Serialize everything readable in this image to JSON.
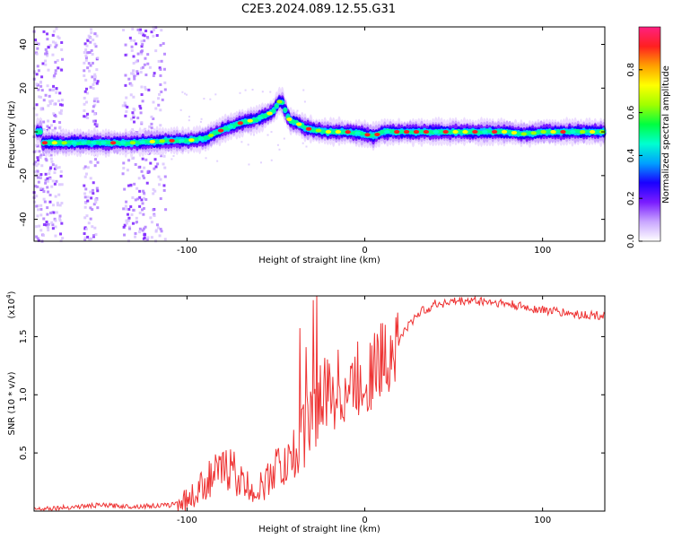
{
  "chart_data": [
    {
      "type": "heatmap",
      "title": "C2E3.2024.089.12.55.G31",
      "xlabel": "Height of straight line (km)",
      "ylabel": "Frequency (Hz)",
      "xlim": [
        -186,
        135
      ],
      "ylim": [
        -50,
        48
      ],
      "x_ticks": [
        -100,
        0,
        100
      ],
      "x_tick_labels": [
        "-100",
        "0",
        "100"
      ],
      "y_ticks": [
        -40,
        -20,
        0,
        20,
        40
      ],
      "y_tick_labels": [
        "-40",
        "-20",
        "0",
        "20",
        "40"
      ],
      "colorbar": {
        "label": "Normalized spectral amplitude",
        "range": [
          0,
          1
        ],
        "ticks": [
          0.0,
          0.2,
          0.4,
          0.6,
          0.8
        ],
        "tick_labels": [
          "0.0",
          "0.2",
          "0.4",
          "0.6",
          "0.8"
        ],
        "colors": [
          "#ffffff",
          "#c9a6ff",
          "#7a1cff",
          "#1a00ff",
          "#00a0ff",
          "#00ffd0",
          "#00ff40",
          "#a0ff00",
          "#ffff00",
          "#ffa000",
          "#ff2020",
          "#ff2080"
        ]
      },
      "ridge": {
        "name": "dominant frequency",
        "x": [
          -182,
          -170,
          -150,
          -130,
          -110,
          -100,
          -90,
          -80,
          -70,
          -60,
          -52,
          -47,
          -44,
          -42,
          -38,
          -34,
          -30,
          -20,
          -10,
          0,
          5,
          10,
          20,
          40,
          60,
          80,
          90,
          100,
          110,
          120,
          135
        ],
        "y": [
          -5,
          -5,
          -5,
          -5,
          -4,
          -4,
          -3,
          1,
          4,
          6,
          9,
          15,
          8,
          5,
          4,
          2,
          1,
          0,
          0,
          -1,
          -2,
          0,
          0,
          0,
          0,
          0,
          -1,
          0,
          0,
          0,
          0
        ]
      },
      "noise_bands_x": [
        [
          -186,
          -170
        ],
        [
          -158,
          -150
        ],
        [
          -136,
          -124
        ],
        [
          -126,
          -112
        ]
      ]
    },
    {
      "type": "line",
      "title": "",
      "xlabel": "Height of straight line (km)",
      "ylabel": "SNR (10 * v/v)",
      "y_scale_label": "(x10",
      "y_scale_exp": "4",
      "y_scale_close": ")",
      "xlim": [
        -186,
        135
      ],
      "ylim": [
        0,
        1.85
      ],
      "x_ticks": [
        -100,
        0,
        100
      ],
      "x_tick_labels": [
        "-100",
        "0",
        "100"
      ],
      "y_ticks": [
        0.5,
        1.0,
        1.5
      ],
      "y_tick_labels": [
        "0.5",
        "1.0",
        "1.5"
      ],
      "color": "#ee3333",
      "series": [
        {
          "x": [
            -186,
            -170,
            -150,
            -130,
            -110,
            -100,
            -95,
            -90,
            -85,
            -80,
            -75,
            -70,
            -65,
            -60,
            -55,
            -50,
            -45,
            -40,
            -35,
            -30,
            -25,
            -20,
            -15,
            -10,
            -5,
            0,
            5,
            10,
            15,
            20,
            25,
            30,
            40,
            50,
            60,
            70,
            80,
            90,
            100,
            110,
            120,
            135
          ],
          "y": [
            0.02,
            0.03,
            0.05,
            0.04,
            0.05,
            0.1,
            0.15,
            0.25,
            0.3,
            0.35,
            0.38,
            0.25,
            0.2,
            0.18,
            0.25,
            0.4,
            0.35,
            0.5,
            0.65,
            0.8,
            0.95,
            1.0,
            1.05,
            1.05,
            1.1,
            1.15,
            1.22,
            1.3,
            1.38,
            1.5,
            1.6,
            1.7,
            1.78,
            1.8,
            1.81,
            1.8,
            1.78,
            1.75,
            1.73,
            1.71,
            1.69,
            1.68
          ]
        }
      ]
    }
  ]
}
